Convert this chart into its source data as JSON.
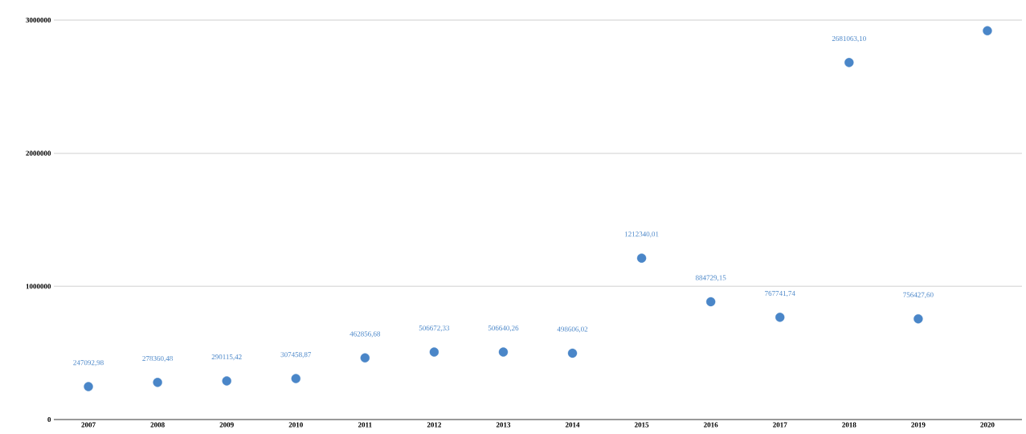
{
  "chart_data": {
    "type": "scatter",
    "categories": [
      "2007",
      "2008",
      "2009",
      "2010",
      "2011",
      "2012",
      "2013",
      "2014",
      "2015",
      "2016",
      "2017",
      "2018",
      "2019",
      "2020"
    ],
    "values": [
      247092.98,
      278360.48,
      290115.42,
      307458.87,
      462856.68,
      506672.33,
      506640.26,
      498606.02,
      1212340.01,
      884729.15,
      767741.74,
      2681063.1,
      756427.6,
      2920000
    ],
    "value_labels": [
      "247092,98",
      "278360,48",
      "290115,42",
      "307458,87",
      "462856,68",
      "506672,33",
      "506640,26",
      "498606,02",
      "1212340,01",
      "884729,15",
      "767741,74",
      "2681063,10",
      "756427,60",
      null
    ],
    "color": "#4a86c8",
    "grid": "y",
    "ylim": [
      0,
      3000000
    ],
    "yticks": [
      0,
      1000000,
      2000000,
      3000000
    ]
  }
}
